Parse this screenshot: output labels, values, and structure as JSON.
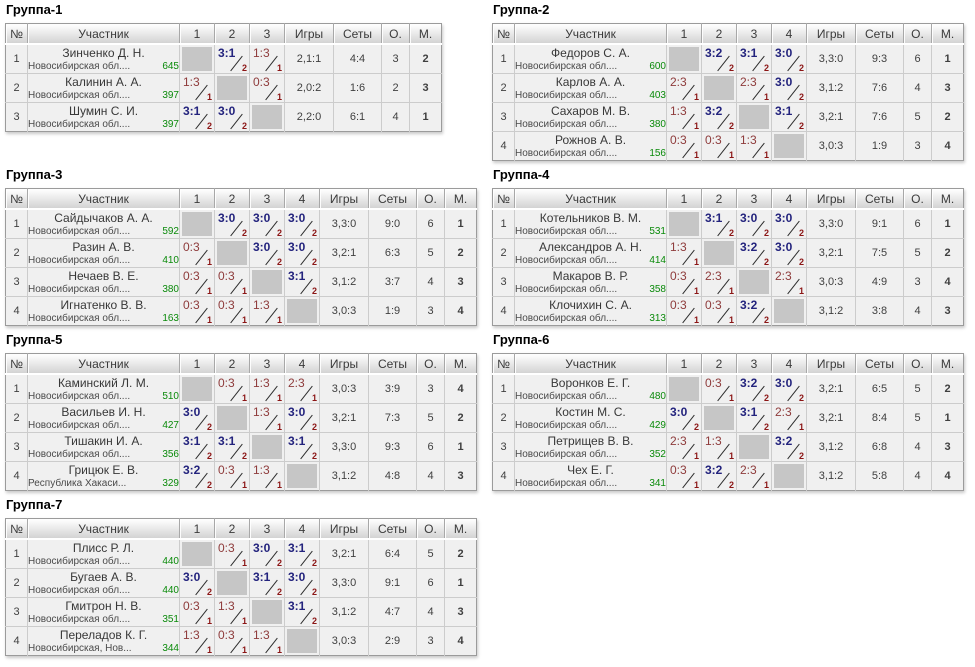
{
  "colors": {
    "win_score": "#23237d",
    "loss_score": "#8e3b3b",
    "match_points": "#8b1515",
    "rating": "#0a8a0a",
    "place": "#23237d",
    "self_cell": "#c6c6c6"
  },
  "table_headers": {
    "num": "№",
    "participant": "Участник",
    "games": "Игры",
    "sets": "Сеты",
    "points": "О.",
    "place": "М."
  },
  "groups": [
    {
      "title": "Группа-1",
      "players": [
        {
          "n": "1",
          "name": "Зинченко Д. Н.",
          "region": "Новосибирская обл....",
          "rating": "645",
          "results": [
            null,
            {
              "score": "3:1",
              "points": "2"
            },
            {
              "score": "1:3",
              "points": "1"
            }
          ],
          "games": "2,1:1",
          "sets": "4:4",
          "points": "3",
          "place": "2"
        },
        {
          "n": "2",
          "name": "Калинин А. А.",
          "region": "Новосибирская обл....",
          "rating": "397",
          "results": [
            {
              "score": "1:3",
              "points": "1"
            },
            null,
            {
              "score": "0:3",
              "points": "1"
            }
          ],
          "games": "2,0:2",
          "sets": "1:6",
          "points": "2",
          "place": "3"
        },
        {
          "n": "3",
          "name": "Шумин С. И.",
          "region": "Новосибирская обл....",
          "rating": "397",
          "results": [
            {
              "score": "3:1",
              "points": "2"
            },
            {
              "score": "3:0",
              "points": "2"
            },
            null
          ],
          "games": "2,2:0",
          "sets": "6:1",
          "points": "4",
          "place": "1"
        }
      ]
    },
    {
      "title": "Группа-2",
      "players": [
        {
          "n": "1",
          "name": "Федоров С. А.",
          "region": "Новосибирская обл....",
          "rating": "600",
          "results": [
            null,
            {
              "score": "3:2",
              "points": "2"
            },
            {
              "score": "3:1",
              "points": "2"
            },
            {
              "score": "3:0",
              "points": "2"
            }
          ],
          "games": "3,3:0",
          "sets": "9:3",
          "points": "6",
          "place": "1"
        },
        {
          "n": "2",
          "name": "Карлов А. А.",
          "region": "Новосибирская обл....",
          "rating": "403",
          "results": [
            {
              "score": "2:3",
              "points": "1"
            },
            null,
            {
              "score": "2:3",
              "points": "1"
            },
            {
              "score": "3:0",
              "points": "2"
            }
          ],
          "games": "3,1:2",
          "sets": "7:6",
          "points": "4",
          "place": "3"
        },
        {
          "n": "3",
          "name": "Сахаров М. В.",
          "region": "Новосибирская обл....",
          "rating": "380",
          "results": [
            {
              "score": "1:3",
              "points": "1"
            },
            {
              "score": "3:2",
              "points": "2"
            },
            null,
            {
              "score": "3:1",
              "points": "2"
            }
          ],
          "games": "3,2:1",
          "sets": "7:6",
          "points": "5",
          "place": "2"
        },
        {
          "n": "4",
          "name": "Рожнов А. В.",
          "region": "Новосибирская обл....",
          "rating": "156",
          "results": [
            {
              "score": "0:3",
              "points": "1"
            },
            {
              "score": "0:3",
              "points": "1"
            },
            {
              "score": "1:3",
              "points": "1"
            },
            null
          ],
          "games": "3,0:3",
          "sets": "1:9",
          "points": "3",
          "place": "4"
        }
      ]
    },
    {
      "title": "Группа-3",
      "players": [
        {
          "n": "1",
          "name": "Сайдычаков А. А.",
          "region": "Новосибирская обл....",
          "rating": "592",
          "results": [
            null,
            {
              "score": "3:0",
              "points": "2"
            },
            {
              "score": "3:0",
              "points": "2"
            },
            {
              "score": "3:0",
              "points": "2"
            }
          ],
          "games": "3,3:0",
          "sets": "9:0",
          "points": "6",
          "place": "1"
        },
        {
          "n": "2",
          "name": "Разин А. В.",
          "region": "Новосибирская обл....",
          "rating": "410",
          "results": [
            {
              "score": "0:3",
              "points": "1"
            },
            null,
            {
              "score": "3:0",
              "points": "2"
            },
            {
              "score": "3:0",
              "points": "2"
            }
          ],
          "games": "3,2:1",
          "sets": "6:3",
          "points": "5",
          "place": "2"
        },
        {
          "n": "3",
          "name": "Нечаев В. Е.",
          "region": "Новосибирская обл....",
          "rating": "380",
          "results": [
            {
              "score": "0:3",
              "points": "1"
            },
            {
              "score": "0:3",
              "points": "1"
            },
            null,
            {
              "score": "3:1",
              "points": "2"
            }
          ],
          "games": "3,1:2",
          "sets": "3:7",
          "points": "4",
          "place": "3"
        },
        {
          "n": "4",
          "name": "Игнатенко В. В.",
          "region": "Новосибирская обл....",
          "rating": "163",
          "results": [
            {
              "score": "0:3",
              "points": "1"
            },
            {
              "score": "0:3",
              "points": "1"
            },
            {
              "score": "1:3",
              "points": "1"
            },
            null
          ],
          "games": "3,0:3",
          "sets": "1:9",
          "points": "3",
          "place": "4"
        }
      ]
    },
    {
      "title": "Группа-4",
      "players": [
        {
          "n": "1",
          "name": "Котельников В. М.",
          "region": "Новосибирская обл....",
          "rating": "531",
          "results": [
            null,
            {
              "score": "3:1",
              "points": "2"
            },
            {
              "score": "3:0",
              "points": "2"
            },
            {
              "score": "3:0",
              "points": "2"
            }
          ],
          "games": "3,3:0",
          "sets": "9:1",
          "points": "6",
          "place": "1"
        },
        {
          "n": "2",
          "name": "Александров А. Н.",
          "region": "Новосибирская обл....",
          "rating": "414",
          "results": [
            {
              "score": "1:3",
              "points": "1"
            },
            null,
            {
              "score": "3:2",
              "points": "2"
            },
            {
              "score": "3:0",
              "points": "2"
            }
          ],
          "games": "3,2:1",
          "sets": "7:5",
          "points": "5",
          "place": "2"
        },
        {
          "n": "3",
          "name": "Макаров В. Р.",
          "region": "Новосибирская обл....",
          "rating": "358",
          "results": [
            {
              "score": "0:3",
              "points": "1"
            },
            {
              "score": "2:3",
              "points": "1"
            },
            null,
            {
              "score": "2:3",
              "points": "1"
            }
          ],
          "games": "3,0:3",
          "sets": "4:9",
          "points": "3",
          "place": "4"
        },
        {
          "n": "4",
          "name": "Клочихин С. А.",
          "region": "Новосибирская обл....",
          "rating": "313",
          "results": [
            {
              "score": "0:3",
              "points": "1"
            },
            {
              "score": "0:3",
              "points": "1"
            },
            {
              "score": "3:2",
              "points": "2"
            },
            null
          ],
          "games": "3,1:2",
          "sets": "3:8",
          "points": "4",
          "place": "3"
        }
      ]
    },
    {
      "title": "Группа-5",
      "players": [
        {
          "n": "1",
          "name": "Каминский Л. М.",
          "region": "Новосибирская обл....",
          "rating": "510",
          "results": [
            null,
            {
              "score": "0:3",
              "points": "1"
            },
            {
              "score": "1:3",
              "points": "1"
            },
            {
              "score": "2:3",
              "points": "1"
            }
          ],
          "games": "3,0:3",
          "sets": "3:9",
          "points": "3",
          "place": "4"
        },
        {
          "n": "2",
          "name": "Васильев И. Н.",
          "region": "Новосибирская обл....",
          "rating": "427",
          "results": [
            {
              "score": "3:0",
              "points": "2"
            },
            null,
            {
              "score": "1:3",
              "points": "1"
            },
            {
              "score": "3:0",
              "points": "2"
            }
          ],
          "games": "3,2:1",
          "sets": "7:3",
          "points": "5",
          "place": "2"
        },
        {
          "n": "3",
          "name": "Тишакин И. А.",
          "region": "Новосибирская обл....",
          "rating": "356",
          "results": [
            {
              "score": "3:1",
              "points": "2"
            },
            {
              "score": "3:1",
              "points": "2"
            },
            null,
            {
              "score": "3:1",
              "points": "2"
            }
          ],
          "games": "3,3:0",
          "sets": "9:3",
          "points": "6",
          "place": "1"
        },
        {
          "n": "4",
          "name": "Грицюк Е. В.",
          "region": "Республика Хакаси...",
          "rating": "329",
          "results": [
            {
              "score": "3:2",
              "points": "2"
            },
            {
              "score": "0:3",
              "points": "1"
            },
            {
              "score": "1:3",
              "points": "1"
            },
            null
          ],
          "games": "3,1:2",
          "sets": "4:8",
          "points": "4",
          "place": "3"
        }
      ]
    },
    {
      "title": "Группа-6",
      "players": [
        {
          "n": "1",
          "name": "Воронков Е. Г.",
          "region": "Новосибирская обл....",
          "rating": "480",
          "results": [
            null,
            {
              "score": "0:3",
              "points": "1"
            },
            {
              "score": "3:2",
              "points": "2"
            },
            {
              "score": "3:0",
              "points": "2"
            }
          ],
          "games": "3,2:1",
          "sets": "6:5",
          "points": "5",
          "place": "2"
        },
        {
          "n": "2",
          "name": "Костин М. С.",
          "region": "Новосибирская обл....",
          "rating": "429",
          "results": [
            {
              "score": "3:0",
              "points": "2"
            },
            null,
            {
              "score": "3:1",
              "points": "2"
            },
            {
              "score": "2:3",
              "points": "1"
            }
          ],
          "games": "3,2:1",
          "sets": "8:4",
          "points": "5",
          "place": "1"
        },
        {
          "n": "3",
          "name": "Петрищев В. В.",
          "region": "Новосибирская обл....",
          "rating": "352",
          "results": [
            {
              "score": "2:3",
              "points": "1"
            },
            {
              "score": "1:3",
              "points": "1"
            },
            null,
            {
              "score": "3:2",
              "points": "2"
            }
          ],
          "games": "3,1:2",
          "sets": "6:8",
          "points": "4",
          "place": "3"
        },
        {
          "n": "4",
          "name": "Чех Е. Г.",
          "region": "Новосибирская обл....",
          "rating": "341",
          "results": [
            {
              "score": "0:3",
              "points": "1"
            },
            {
              "score": "3:2",
              "points": "2"
            },
            {
              "score": "2:3",
              "points": "1"
            },
            null
          ],
          "games": "3,1:2",
          "sets": "5:8",
          "points": "4",
          "place": "4"
        }
      ]
    },
    {
      "title": "Группа-7",
      "players": [
        {
          "n": "1",
          "name": "Плисс Р. Л.",
          "region": "Новосибирская обл....",
          "rating": "440",
          "results": [
            null,
            {
              "score": "0:3",
              "points": "1"
            },
            {
              "score": "3:0",
              "points": "2"
            },
            {
              "score": "3:1",
              "points": "2"
            }
          ],
          "games": "3,2:1",
          "sets": "6:4",
          "points": "5",
          "place": "2"
        },
        {
          "n": "2",
          "name": "Бугаев А. В.",
          "region": "Новосибирская обл....",
          "rating": "440",
          "results": [
            {
              "score": "3:0",
              "points": "2"
            },
            null,
            {
              "score": "3:1",
              "points": "2"
            },
            {
              "score": "3:0",
              "points": "2"
            }
          ],
          "games": "3,3:0",
          "sets": "9:1",
          "points": "6",
          "place": "1"
        },
        {
          "n": "3",
          "name": "Гмитрон Н. В.",
          "region": "Новосибирская обл....",
          "rating": "351",
          "results": [
            {
              "score": "0:3",
              "points": "1"
            },
            {
              "score": "1:3",
              "points": "1"
            },
            null,
            {
              "score": "3:1",
              "points": "2"
            }
          ],
          "games": "3,1:2",
          "sets": "4:7",
          "points": "4",
          "place": "3"
        },
        {
          "n": "4",
          "name": "Переладов К. Г.",
          "region": "Новосибирская, Нов...",
          "rating": "344",
          "results": [
            {
              "score": "1:3",
              "points": "1"
            },
            {
              "score": "0:3",
              "points": "1"
            },
            {
              "score": "1:3",
              "points": "1"
            },
            null
          ],
          "games": "3,0:3",
          "sets": "2:9",
          "points": "3",
          "place": "4"
        }
      ]
    }
  ]
}
